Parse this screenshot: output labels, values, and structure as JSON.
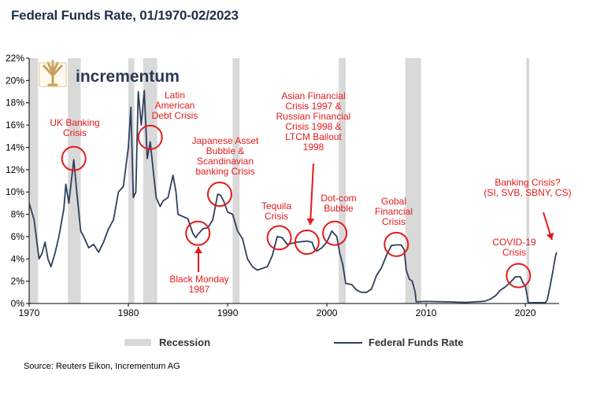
{
  "title": "Federal Funds Rate, 01/1970-02/2023",
  "source": "Source: Reuters Eikon, Incrementum AG",
  "logo_text": "incrementum",
  "legend": {
    "recession": "Recession",
    "series": "Federal Funds Rate"
  },
  "colors": {
    "line": "#2e3f5c",
    "recession": "#d9d9d9",
    "annotation": "#e41a1c",
    "title": "#1f3048"
  },
  "chart_data": {
    "type": "line",
    "xlim": [
      1970,
      2023.4
    ],
    "ylim": [
      0,
      22
    ],
    "x_ticks": [
      {
        "value": 1970,
        "label": "1970"
      },
      {
        "value": 1980,
        "label": "1980"
      },
      {
        "value": 1990,
        "label": "1990"
      },
      {
        "value": 2000,
        "label": "2000"
      },
      {
        "value": 2010,
        "label": "2010"
      },
      {
        "value": 2020,
        "label": "2020"
      }
    ],
    "y_ticks": [
      {
        "value": 0,
        "label": "0%"
      },
      {
        "value": 2,
        "label": "2%"
      },
      {
        "value": 4,
        "label": "4%"
      },
      {
        "value": 6,
        "label": "6%"
      },
      {
        "value": 8,
        "label": "8%"
      },
      {
        "value": 10,
        "label": "10%"
      },
      {
        "value": 12,
        "label": "12%"
      },
      {
        "value": 14,
        "label": "14%"
      },
      {
        "value": 16,
        "label": "16%"
      },
      {
        "value": 18,
        "label": "18%"
      },
      {
        "value": 20,
        "label": "20%"
      },
      {
        "value": 22,
        "label": "22%"
      }
    ],
    "recessions": [
      [
        1969.9,
        1970.9
      ],
      [
        1973.9,
        1975.2
      ],
      [
        1980.0,
        1980.6
      ],
      [
        1981.5,
        1982.9
      ],
      [
        1990.5,
        1991.2
      ],
      [
        2001.2,
        2001.9
      ],
      [
        2007.9,
        2009.5
      ],
      [
        2020.1,
        2020.4
      ]
    ],
    "series": [
      {
        "name": "Federal Funds Rate",
        "x": [
          1970.0,
          1970.5,
          1971.0,
          1971.3,
          1971.6,
          1971.9,
          1972.2,
          1972.6,
          1973.0,
          1973.5,
          1973.7,
          1974.0,
          1974.5,
          1974.8,
          1975.2,
          1975.5,
          1976.0,
          1976.5,
          1977.0,
          1977.5,
          1978.0,
          1978.5,
          1979.0,
          1979.5,
          1980.0,
          1980.25,
          1980.5,
          1980.75,
          1981.0,
          1981.3,
          1981.6,
          1981.9,
          1982.2,
          1982.5,
          1982.8,
          1983.2,
          1983.5,
          1984.0,
          1984.5,
          1984.8,
          1985.0,
          1985.5,
          1986.0,
          1986.5,
          1986.8,
          1987.0,
          1987.5,
          1988.0,
          1988.5,
          1989.0,
          1989.3,
          1989.6,
          1990.0,
          1990.5,
          1991.0,
          1991.5,
          1992.0,
          1992.5,
          1993.0,
          1994.0,
          1994.5,
          1995.0,
          1995.5,
          1996.0,
          1997.0,
          1998.0,
          1998.5,
          1998.8,
          1999.0,
          1999.5,
          2000.0,
          2000.5,
          2001.0,
          2001.3,
          2001.6,
          2001.9,
          2002.5,
          2003.0,
          2003.5,
          2004.0,
          2004.5,
          2005.0,
          2005.5,
          2006.0,
          2006.5,
          2007.0,
          2007.5,
          2007.8,
          2008.0,
          2008.3,
          2008.6,
          2008.9,
          2009.0,
          2010.0,
          2012.0,
          2014.0,
          2015.9,
          2016.5,
          2017.0,
          2017.5,
          2018.0,
          2018.5,
          2019.0,
          2019.5,
          2019.8,
          2020.0,
          2020.2,
          2020.3,
          2021.0,
          2022.0,
          2022.2,
          2022.5,
          2022.8,
          2023.0,
          2023.15
        ],
        "values": [
          9.0,
          7.5,
          4.0,
          4.5,
          5.5,
          4.0,
          3.3,
          4.5,
          6.0,
          8.5,
          10.7,
          9.0,
          12.9,
          10.0,
          6.5,
          6.0,
          5.0,
          5.3,
          4.6,
          5.5,
          6.7,
          7.5,
          10.0,
          10.5,
          14.0,
          17.6,
          9.5,
          10.0,
          19.0,
          16.0,
          19.1,
          13.0,
          14.5,
          12.0,
          9.5,
          8.7,
          9.2,
          9.5,
          11.5,
          10.0,
          8.0,
          7.8,
          7.6,
          6.3,
          5.9,
          6.2,
          6.7,
          6.8,
          7.5,
          9.8,
          9.7,
          9.2,
          8.2,
          8.0,
          6.5,
          5.8,
          4.0,
          3.3,
          3.0,
          3.3,
          4.3,
          6.0,
          5.9,
          5.3,
          5.5,
          5.6,
          5.5,
          4.8,
          4.7,
          5.0,
          5.5,
          6.5,
          6.0,
          4.5,
          3.5,
          1.8,
          1.7,
          1.2,
          1.0,
          1.0,
          1.3,
          2.5,
          3.2,
          4.3,
          5.2,
          5.25,
          5.25,
          4.8,
          3.0,
          2.2,
          2.0,
          1.0,
          0.15,
          0.18,
          0.15,
          0.1,
          0.2,
          0.4,
          0.7,
          1.2,
          1.5,
          1.9,
          2.4,
          2.4,
          1.8,
          1.6,
          0.6,
          0.07,
          0.08,
          0.08,
          0.3,
          1.6,
          3.0,
          4.1,
          4.6
        ]
      }
    ],
    "annotations": [
      {
        "text": [
          "UK Banking",
          "Crisis"
        ],
        "circle": [
          1974.5,
          13.0
        ]
      },
      {
        "text": [
          "Latin",
          "American",
          "Debt Crisis"
        ],
        "circle": [
          1982.2,
          14.9
        ]
      },
      {
        "text": [
          "Japanese Asset",
          "Bubble &",
          "Scandinavian",
          "banking Crisis"
        ],
        "circle": [
          1989.2,
          9.8
        ]
      },
      {
        "text": [
          "Black Monday",
          "1987"
        ],
        "circle": [
          1987.0,
          6.3
        ]
      },
      {
        "text": [
          "Tequila",
          "Crisis"
        ],
        "circle": [
          1995.2,
          5.9
        ]
      },
      {
        "text": [
          "Asian Financial",
          "Crisis 1997 &",
          "Russian Financial",
          "Crisis 1998 &",
          "LTCM Bailout",
          "1998"
        ],
        "circle": [
          1998.0,
          5.5
        ]
      },
      {
        "text": [
          "Dot-com",
          "Bubble"
        ],
        "circle": [
          2000.8,
          6.3
        ]
      },
      {
        "text": [
          "Gobal",
          "Financial",
          "Crisis"
        ],
        "circle": [
          2007.0,
          5.3
        ]
      },
      {
        "text": [
          "COVID-19",
          "Crisis"
        ],
        "circle": [
          2019.3,
          2.5
        ]
      },
      {
        "text": [
          "Banking Crisis?",
          "(SI, SVB, SBNY, CS)"
        ],
        "circle": null
      }
    ]
  }
}
